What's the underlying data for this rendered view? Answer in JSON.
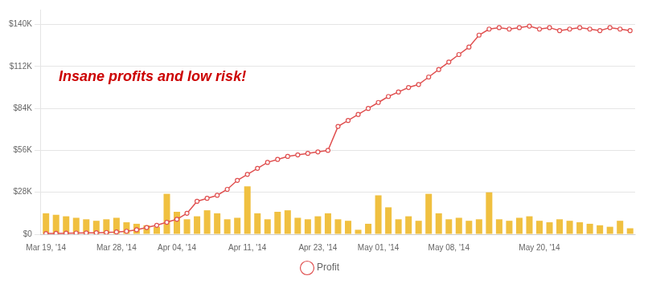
{
  "chart_data": {
    "type": "bar",
    "categories": [
      "Mar 19, '14",
      null,
      null,
      null,
      null,
      null,
      null,
      "Mar 28, '14",
      null,
      null,
      null,
      null,
      null,
      "Apr 04, '14",
      null,
      null,
      null,
      null,
      null,
      null,
      "Apr 11, '14",
      null,
      null,
      null,
      null,
      null,
      null,
      "Apr 23, '14",
      null,
      null,
      null,
      null,
      null,
      "May 01, '14",
      null,
      null,
      null,
      null,
      null,
      null,
      "May 08, '14",
      null,
      null,
      null,
      null,
      null,
      null,
      null,
      null,
      "May 20, '14",
      null,
      null,
      null,
      null,
      null,
      null,
      null,
      null,
      null
    ],
    "series": [
      {
        "type": "bar",
        "color": "#f0c040",
        "values": [
          14000,
          13000,
          12000,
          11000,
          10000,
          9000,
          10000,
          11000,
          8000,
          7000,
          6000,
          5000,
          27000,
          15000,
          10000,
          12000,
          16000,
          14000,
          10000,
          11000,
          32000,
          14000,
          10000,
          15000,
          16000,
          11000,
          10000,
          12000,
          14000,
          10000,
          9000,
          3000,
          7000,
          26000,
          18000,
          10000,
          12000,
          9000,
          27000,
          14000,
          10000,
          11000,
          9000,
          10000,
          28000,
          10000,
          9000,
          11000,
          12000,
          9000,
          8000,
          10000,
          9000,
          8000,
          7000,
          6000,
          5000,
          9000,
          4000
        ]
      },
      {
        "name": "Profit",
        "type": "line",
        "color": "#e05050",
        "marker": "circle",
        "values": [
          500,
          600,
          700,
          800,
          900,
          1000,
          1200,
          1500,
          2000,
          3000,
          4500,
          6000,
          8000,
          10000,
          14000,
          22000,
          24000,
          26000,
          30000,
          36000,
          40000,
          44000,
          48000,
          50000,
          52000,
          53000,
          54000,
          55000,
          56000,
          72000,
          76000,
          80000,
          84000,
          88000,
          92000,
          95000,
          98000,
          100000,
          105000,
          110000,
          115000,
          120000,
          125000,
          133000,
          137000,
          138000,
          137000,
          138000,
          139000,
          137000,
          138000,
          136000,
          137000,
          138000,
          137000,
          136000,
          138000,
          137000,
          136000
        ]
      }
    ],
    "ylim": [
      0,
      150000
    ],
    "yticks": [
      {
        "value": 0,
        "label": "$0"
      },
      {
        "value": 28000,
        "label": "$28K"
      },
      {
        "value": 56000,
        "label": "$56K"
      },
      {
        "value": 84000,
        "label": "$84K"
      },
      {
        "value": 112000,
        "label": "$112K"
      },
      {
        "value": 140000,
        "label": "$140K"
      }
    ],
    "grid": true,
    "legend": "bottom",
    "annotations": [
      {
        "text": "Insane profits and low risk!",
        "color": "#cc0000"
      }
    ]
  }
}
